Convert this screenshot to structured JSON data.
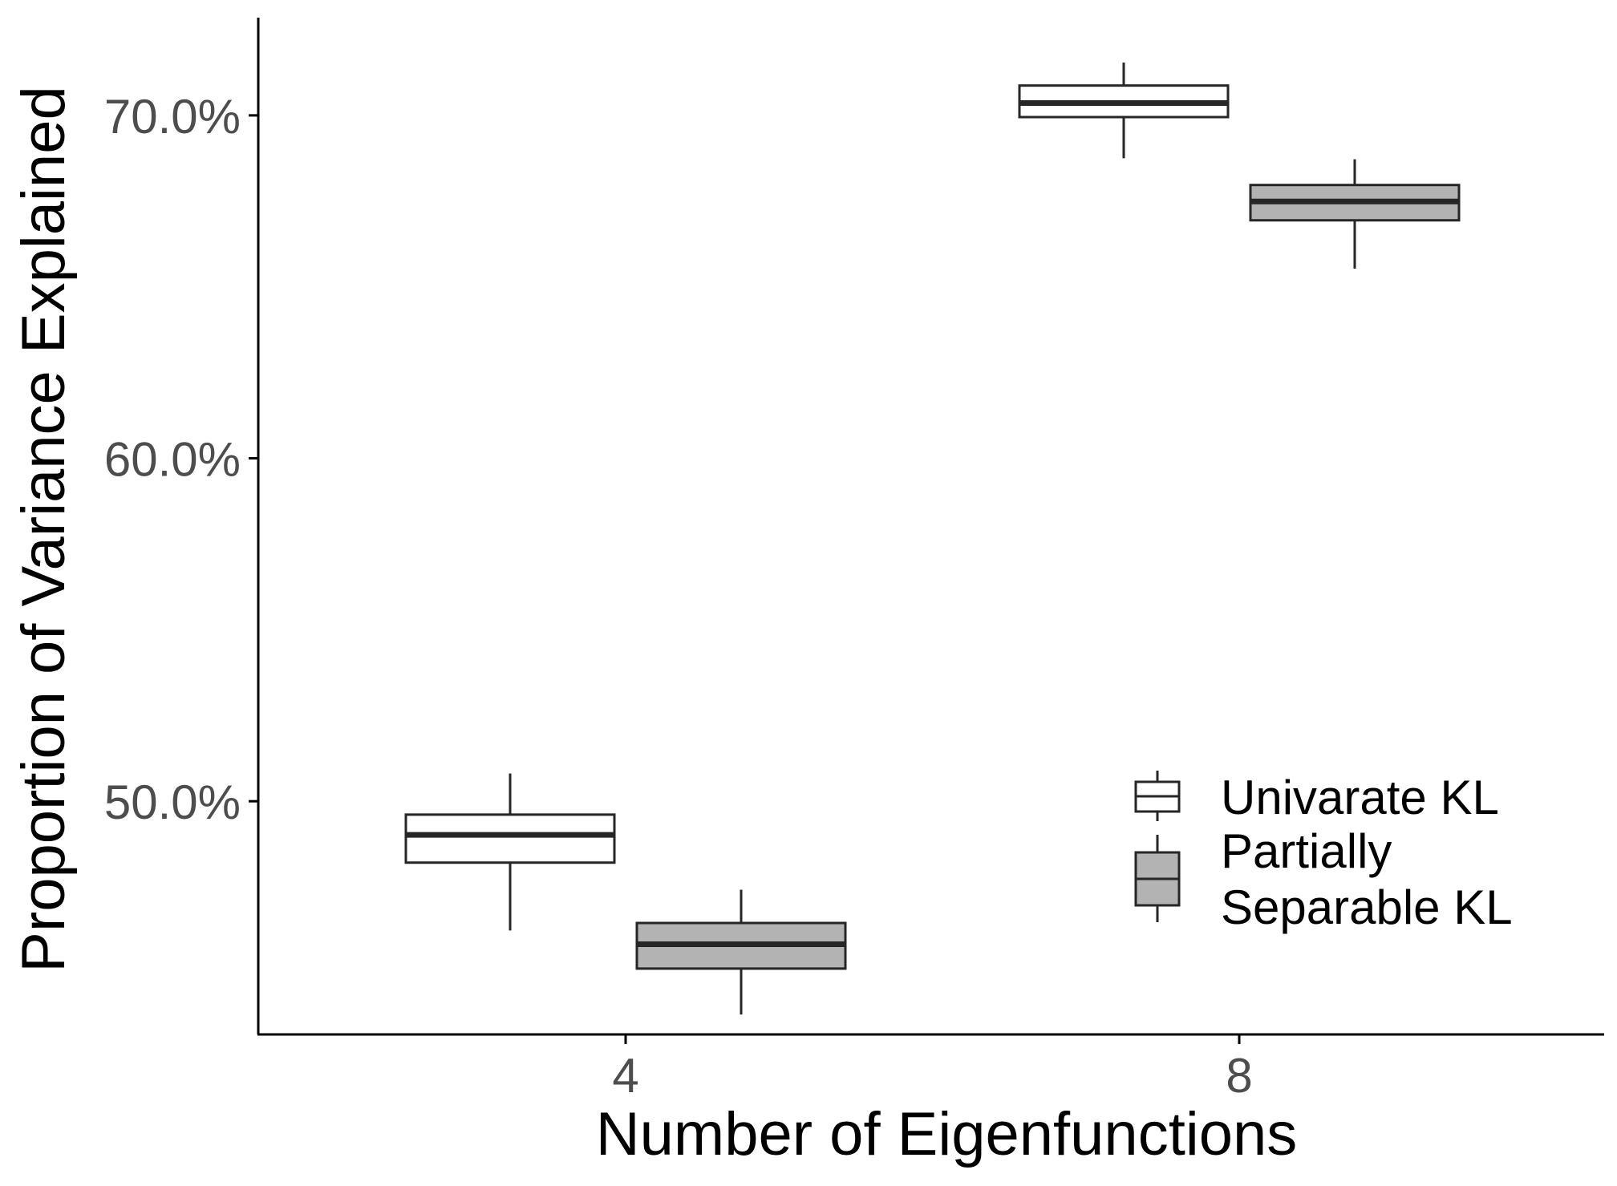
{
  "chart_data": {
    "type": "box",
    "xlabel": "Number of Eigenfunctions",
    "ylabel": "Proportion of Variance Explained",
    "categories": [
      "4",
      "8"
    ],
    "y_ticks": [
      {
        "value": 0.5,
        "label": "50.0%"
      },
      {
        "value": 0.6,
        "label": "60.0%"
      },
      {
        "value": 0.7,
        "label": "70.0%"
      }
    ],
    "ylim": [
      0.432,
      0.7285
    ],
    "grid": false,
    "legend_position": "bottom-right (inside)",
    "series": [
      {
        "name": "Univarate KL",
        "legend_lines": [
          "Univarate KL"
        ],
        "fill": "#ffffff",
        "boxes": [
          {
            "category": "4",
            "whisker_low": 0.4623,
            "q1": 0.4821,
            "median": 0.4902,
            "q3": 0.4961,
            "whisker_high": 0.5081
          },
          {
            "category": "8",
            "whisker_low": 0.6875,
            "q1": 0.6995,
            "median": 0.7036,
            "q3": 0.7087,
            "whisker_high": 0.7154
          }
        ]
      },
      {
        "name": "Partially Separable KL",
        "legend_lines": [
          "Partially",
          "Separable KL"
        ],
        "fill": "#b3b3b3",
        "boxes": [
          {
            "category": "4",
            "whisker_low": 0.4378,
            "q1": 0.4512,
            "median": 0.4583,
            "q3": 0.4645,
            "whisker_high": 0.4742
          },
          {
            "category": "8",
            "whisker_low": 0.6553,
            "q1": 0.6694,
            "median": 0.6749,
            "q3": 0.6797,
            "whisker_high": 0.6872
          }
        ]
      }
    ],
    "colors": {
      "stroke": "#262626",
      "axis": "#000000",
      "tick_label": "#4d4d4d"
    }
  }
}
